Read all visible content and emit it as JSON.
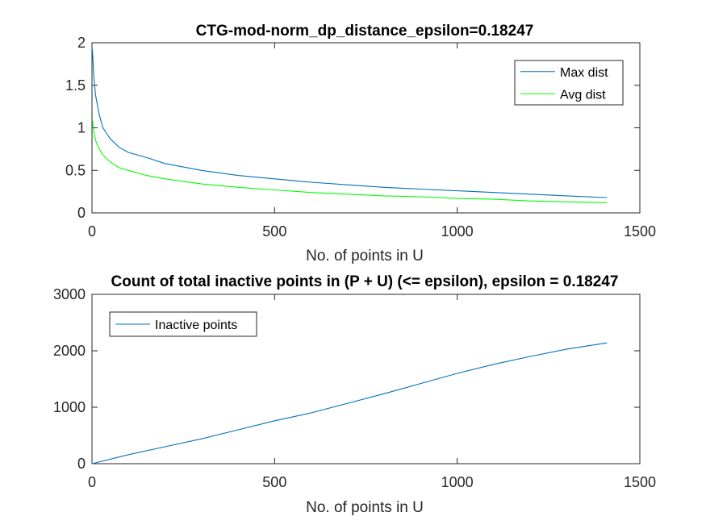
{
  "chart_data": [
    {
      "type": "line",
      "title": "CTG-mod-norm_dp_distance_epsilon=0.18247",
      "xlabel": "No. of points in U",
      "ylabel": "",
      "xlim": [
        0,
        1500
      ],
      "ylim": [
        0,
        2
      ],
      "xticks": [
        "0",
        "500",
        "1000",
        "1500"
      ],
      "yticks": [
        "0",
        "0.5",
        "1",
        "1.5",
        "2"
      ],
      "grid": false,
      "legend_position": "top-right",
      "series": [
        {
          "name": "Max dist",
          "color": "#0072BD",
          "x": [
            1,
            5,
            10,
            20,
            30,
            50,
            75,
            100,
            150,
            200,
            300,
            400,
            500,
            600,
            700,
            800,
            900,
            1000,
            1100,
            1200,
            1300,
            1410
          ],
          "y": [
            1.92,
            1.6,
            1.38,
            1.15,
            1.0,
            0.87,
            0.77,
            0.71,
            0.65,
            0.58,
            0.5,
            0.44,
            0.4,
            0.36,
            0.33,
            0.3,
            0.28,
            0.26,
            0.24,
            0.22,
            0.2,
            0.18
          ]
        },
        {
          "name": "Avg dist",
          "color": "#00FF00",
          "x": [
            1,
            5,
            10,
            20,
            30,
            50,
            75,
            100,
            150,
            200,
            300,
            400,
            500,
            600,
            700,
            800,
            900,
            1000,
            1100,
            1200,
            1300,
            1410
          ],
          "y": [
            1.1,
            0.95,
            0.85,
            0.75,
            0.68,
            0.6,
            0.53,
            0.5,
            0.44,
            0.4,
            0.34,
            0.3,
            0.27,
            0.24,
            0.22,
            0.2,
            0.19,
            0.17,
            0.16,
            0.14,
            0.13,
            0.12
          ]
        }
      ]
    },
    {
      "type": "line",
      "title": "Count of total inactive points in (P + U) (<= epsilon), epsilon = 0.18247",
      "xlabel": "No. of points in U",
      "ylabel": "",
      "xlim": [
        0,
        1500
      ],
      "ylim": [
        0,
        3000
      ],
      "xticks": [
        "0",
        "500",
        "1000",
        "1500"
      ],
      "yticks": [
        "0",
        "1000",
        "2000",
        "3000"
      ],
      "grid": false,
      "legend_position": "top-left",
      "series": [
        {
          "name": "Inactive points",
          "color": "#0072BD",
          "x": [
            0,
            100,
            200,
            300,
            400,
            500,
            600,
            700,
            800,
            900,
            1000,
            1100,
            1200,
            1300,
            1410
          ],
          "y": [
            0,
            160,
            300,
            440,
            600,
            760,
            900,
            1070,
            1240,
            1420,
            1600,
            1760,
            1900,
            2030,
            2140
          ]
        }
      ]
    }
  ]
}
